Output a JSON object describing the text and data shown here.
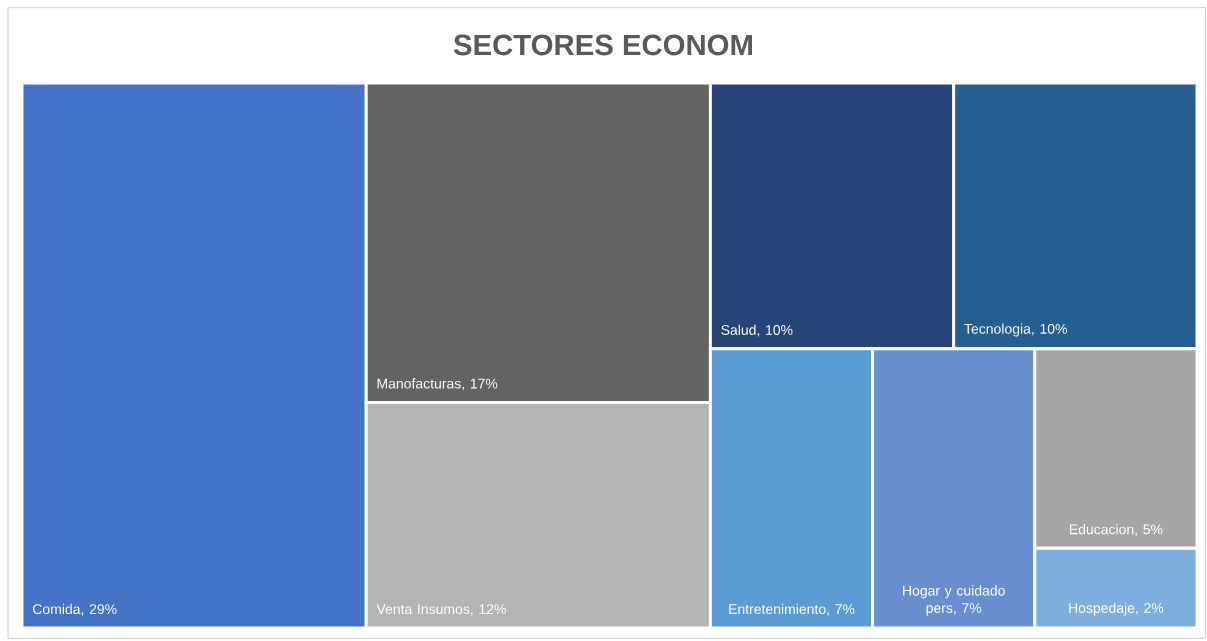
{
  "chart_data": {
    "type": "other",
    "title": "SECTORES ECONOM",
    "categories": [
      "Comida",
      "Manofacturas",
      "Venta Insumos",
      "Salud",
      "Tecnologia",
      "Entretenimiento",
      "Hogar y cuidado pers",
      "Educacion",
      "Hospedaje"
    ],
    "value_labels": [
      ", 29%",
      ", 17%",
      ", 12%",
      ", 10%",
      ", 10%",
      ", 7%",
      ", 7%",
      ", 5%",
      ", 2%"
    ],
    "values": [
      29,
      17,
      12,
      10,
      10,
      7,
      7,
      5,
      2
    ],
    "colors": [
      "#4472c4",
      "#636363",
      "#b4b4b4",
      "#264478",
      "#255e91",
      "#5b9bd5",
      "#698ed0",
      "#a5a5a5",
      "#7cafdd"
    ]
  }
}
